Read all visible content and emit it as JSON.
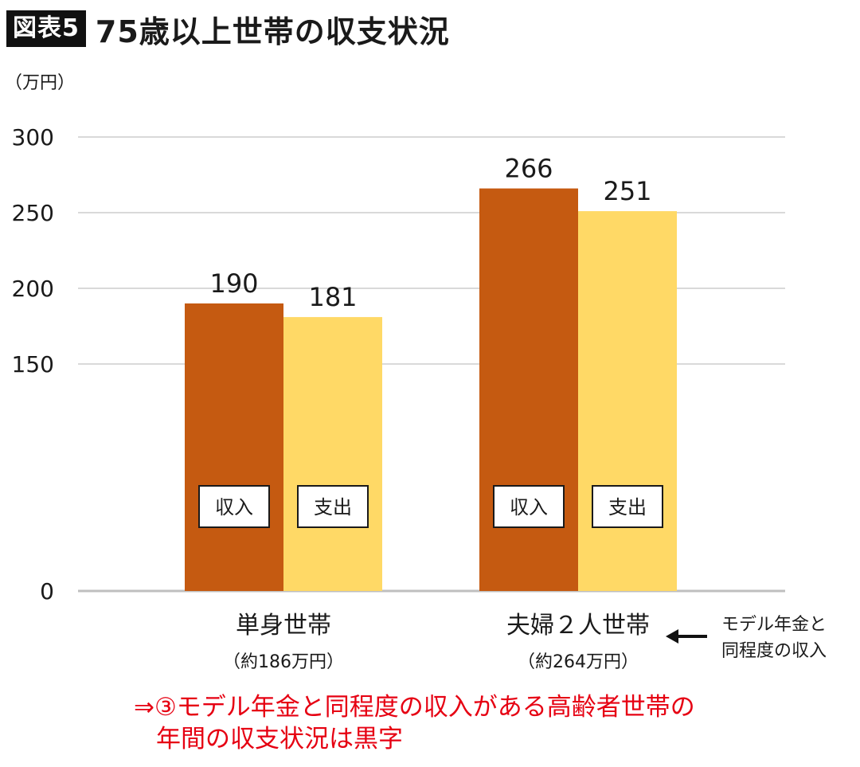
{
  "header": {
    "badge": "図表5",
    "title": "75歳以上世帯の収支状況"
  },
  "chart_data": {
    "type": "bar",
    "ylabel": "（万円）",
    "ylim": [
      0,
      300
    ],
    "y_ticks": [
      {
        "value": 0,
        "label": "0"
      },
      {
        "value": 150,
        "label": "150"
      },
      {
        "value": 200,
        "label": "200"
      },
      {
        "value": 250,
        "label": "250"
      },
      {
        "value": 300,
        "label": "300"
      }
    ],
    "categories": [
      "単身世帯",
      "夫婦２人世帯"
    ],
    "category_notes": [
      "（約186万円）",
      "（約264万円）"
    ],
    "series": [
      {
        "name": "収入",
        "color": "#c55a11",
        "values": [
          190,
          266
        ]
      },
      {
        "name": "支出",
        "color": "#ffd966",
        "values": [
          181,
          251
        ]
      }
    ],
    "grid": true
  },
  "annotation": {
    "line1": "モデル年金と",
    "line2": "同程度の収入"
  },
  "conclusion": {
    "line1": "⇒③モデル年金と同程度の収入がある高齢者世帯の",
    "line2": "年間の収支状況は黒字"
  }
}
